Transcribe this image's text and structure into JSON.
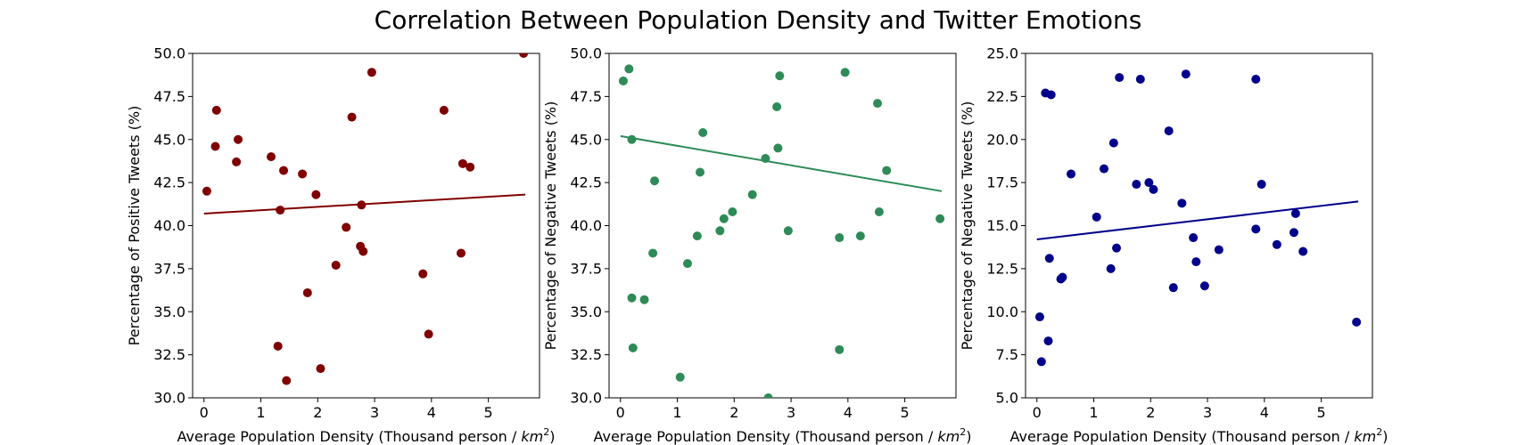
{
  "figure": {
    "title": "Correlation Between Population Density and Twitter Emotions"
  },
  "chart_data": [
    {
      "type": "scatter",
      "title": "",
      "xlabel": "Average Population Density (Thousand person / km²)",
      "xlabel_main": "Average Population Density (Thousand person / ",
      "xlabel_unit_base": "km",
      "xlabel_unit_exp": "2",
      "xlabel_close": ")",
      "ylabel": "Percentage of Positive Tweets (%)",
      "xlim": [
        -0.2,
        5.9
      ],
      "ylim": [
        30,
        50
      ],
      "xticks": [
        0,
        1,
        2,
        3,
        4,
        5
      ],
      "yticks": [
        "30.0",
        "32.5",
        "35.0",
        "37.5",
        "40.0",
        "42.5",
        "45.0",
        "47.5",
        "50.0"
      ],
      "color": "#800000",
      "x": [
        0.05,
        0.2,
        0.22,
        0.57,
        0.6,
        1.18,
        1.3,
        1.34,
        1.4,
        1.45,
        1.73,
        1.82,
        1.97,
        2.05,
        2.32,
        2.5,
        2.6,
        2.75,
        2.77,
        2.8,
        2.95,
        3.85,
        3.95,
        4.22,
        4.52,
        4.55,
        4.68,
        5.62
      ],
      "y": [
        42.0,
        44.6,
        46.7,
        43.7,
        45.0,
        44.0,
        33.0,
        40.9,
        43.2,
        31.0,
        43.0,
        36.1,
        41.8,
        31.7,
        37.7,
        39.9,
        46.3,
        38.8,
        41.2,
        38.5,
        48.9,
        37.2,
        33.7,
        46.7,
        38.4,
        43.6,
        43.4,
        50.0
      ],
      "trend": {
        "x": [
          0.0,
          5.65
        ],
        "y": [
          40.7,
          41.8
        ]
      }
    },
    {
      "type": "scatter",
      "title": "",
      "xlabel": "Average Population Density (Thousand person / km²)",
      "xlabel_main": "Average Population Density (Thousand person / ",
      "xlabel_unit_base": "km",
      "xlabel_unit_exp": "2",
      "xlabel_close": ")",
      "ylabel": "Percentage of Negative Tweets (%)",
      "xlim": [
        -0.2,
        5.9
      ],
      "ylim": [
        30,
        50
      ],
      "xticks": [
        0,
        1,
        2,
        3,
        4,
        5
      ],
      "yticks": [
        "30.0",
        "32.5",
        "35.0",
        "37.5",
        "40.0",
        "42.5",
        "45.0",
        "47.5",
        "50.0"
      ],
      "color": "#2e8b57",
      "x": [
        0.05,
        0.15,
        0.2,
        0.2,
        0.22,
        0.42,
        0.57,
        0.6,
        1.05,
        1.18,
        1.35,
        1.4,
        1.45,
        1.75,
        1.82,
        1.97,
        2.32,
        2.55,
        2.6,
        2.75,
        2.77,
        2.8,
        2.95,
        3.85,
        3.85,
        3.95,
        4.22,
        4.52,
        4.55,
        4.68,
        5.62
      ],
      "y": [
        48.4,
        49.1,
        45.0,
        35.8,
        32.9,
        35.7,
        38.4,
        42.6,
        31.2,
        37.8,
        39.4,
        43.1,
        45.4,
        39.7,
        40.4,
        40.8,
        41.8,
        43.9,
        30.0,
        46.9,
        44.5,
        48.7,
        39.7,
        32.8,
        39.3,
        48.9,
        39.4,
        47.1,
        40.8,
        43.2,
        40.4
      ],
      "trend": {
        "x": [
          0.0,
          5.65
        ],
        "y": [
          45.2,
          42.0
        ]
      }
    },
    {
      "type": "scatter",
      "title": "",
      "xlabel": "Average Population Density (Thousand person / km²)",
      "xlabel_main": "Average Population Density (Thousand person / ",
      "xlabel_unit_base": "km",
      "xlabel_unit_exp": "2",
      "xlabel_close": ")",
      "ylabel": "Percentage of Negative Tweets (%)",
      "xlim": [
        -0.2,
        5.9
      ],
      "ylim": [
        5,
        25
      ],
      "xticks": [
        0,
        1,
        2,
        3,
        4,
        5
      ],
      "yticks": [
        "5.0",
        "7.5",
        "10.0",
        "12.5",
        "15.0",
        "17.5",
        "20.0",
        "22.5",
        "25.0"
      ],
      "color": "#00008b",
      "x": [
        0.05,
        0.08,
        0.15,
        0.2,
        0.22,
        0.25,
        0.42,
        0.45,
        0.6,
        1.05,
        1.18,
        1.3,
        1.35,
        1.4,
        1.45,
        1.75,
        1.82,
        1.97,
        2.05,
        2.32,
        2.4,
        2.55,
        2.62,
        2.75,
        2.8,
        2.95,
        3.2,
        3.85,
        3.85,
        3.95,
        4.22,
        4.52,
        4.55,
        4.68,
        5.62
      ],
      "y": [
        9.7,
        7.1,
        22.7,
        8.3,
        13.1,
        22.6,
        11.9,
        12.0,
        18.0,
        15.5,
        18.3,
        12.5,
        19.8,
        13.7,
        23.6,
        17.4,
        23.5,
        17.5,
        17.1,
        20.5,
        11.4,
        16.3,
        23.8,
        14.3,
        12.9,
        11.5,
        13.6,
        23.5,
        14.8,
        17.4,
        13.9,
        14.6,
        15.7,
        13.5,
        9.4
      ],
      "trend": {
        "x": [
          0.0,
          5.65
        ],
        "y": [
          14.2,
          16.4
        ]
      }
    }
  ]
}
